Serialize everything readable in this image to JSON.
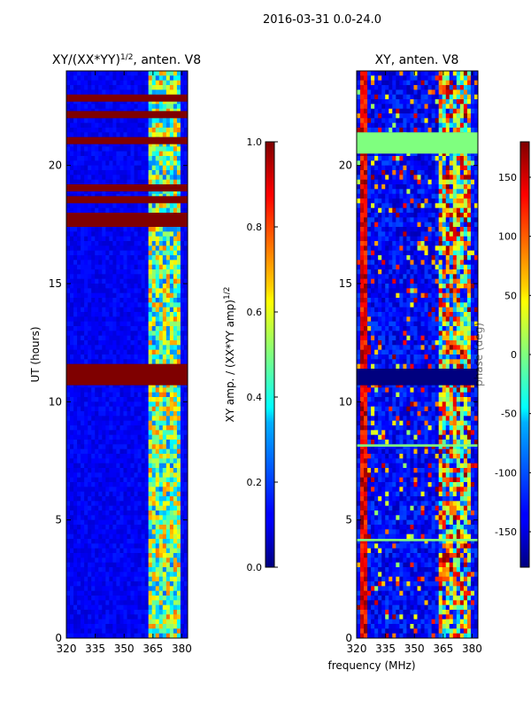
{
  "figure": {
    "suptitle": "2016-03-31 0.0-24.0",
    "shared_ylabel": "UT (hours)",
    "shared_xlabel": "frequency (MHz)"
  },
  "chart_data": [
    {
      "type": "heatmap",
      "title": "XY/(XX*YY)^1/2, anten. V8",
      "xlabel": "frequency (MHz)",
      "ylabel": "UT (hours)",
      "xlim": [
        320,
        383
      ],
      "ylim": [
        0,
        24
      ],
      "xticks": [
        320,
        335,
        350,
        365,
        380
      ],
      "yticks": [
        0,
        5,
        10,
        15,
        20
      ],
      "colorbar": {
        "label": "XY amp. / (XX*YY amp)^1/2",
        "range": [
          0.0,
          1.0
        ],
        "ticks": [
          "0.0",
          "0.2",
          "0.4",
          "0.6",
          "0.8",
          "1.0"
        ]
      },
      "saturated_bands_ut": [
        [
          10.7,
          11.6
        ],
        [
          17.4,
          18.0
        ],
        [
          18.4,
          18.7
        ],
        [
          18.9,
          19.2
        ],
        [
          20.9,
          21.2
        ],
        [
          22.0,
          22.3
        ],
        [
          22.7,
          23.0
        ]
      ],
      "bright_band_mhz": [
        362,
        380
      ]
    },
    {
      "type": "heatmap",
      "title": "XY, anten. V8",
      "xlabel": "frequency (MHz)",
      "ylabel": "",
      "xlim": [
        320,
        383
      ],
      "ylim": [
        0,
        24
      ],
      "xticks": [
        320,
        335,
        350,
        365,
        380
      ],
      "yticks": [
        0,
        5,
        10,
        15,
        20
      ],
      "colorbar": {
        "label": "phase (deg)",
        "range": [
          -180,
          180
        ],
        "ticks": [
          "-150",
          "-100",
          "-50",
          "0",
          "50",
          "100",
          "150"
        ]
      },
      "flagged_bands_ut": [
        [
          20.5,
          21.4
        ],
        [
          10.7,
          11.4
        ],
        [
          8.1,
          8.2
        ],
        [
          4.1,
          4.2
        ]
      ],
      "bright_band_mhz": [
        362,
        380
      ]
    }
  ]
}
